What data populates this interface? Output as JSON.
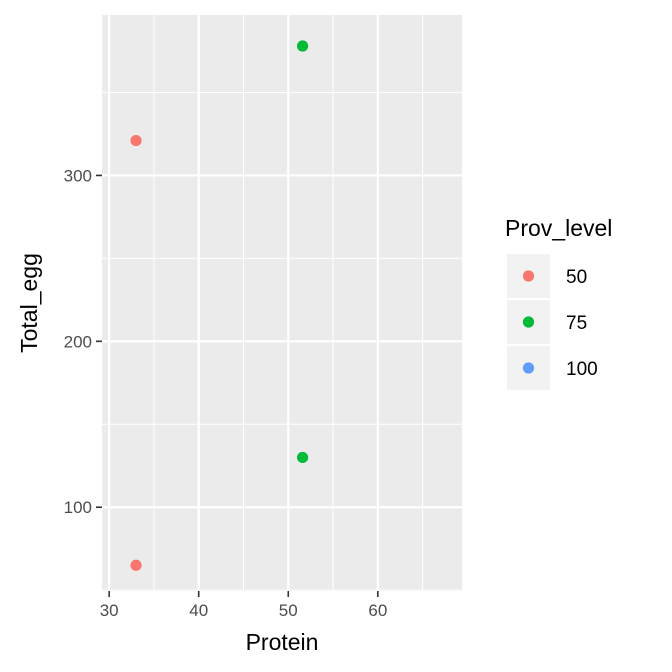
{
  "chart_data": {
    "type": "scatter",
    "xlabel": "Protein",
    "ylabel": "Total_egg",
    "xlim": [
      29.2,
      69.4
    ],
    "ylim": [
      49.5,
      396.7
    ],
    "x_ticks": [
      30,
      40,
      50,
      60
    ],
    "y_ticks": [
      100,
      200,
      300
    ],
    "x_tick_labels": [
      "30",
      "40",
      "50",
      "60"
    ],
    "y_tick_labels": [
      "100",
      "200",
      "300"
    ],
    "x_minor_ticks": [
      35,
      45,
      55,
      65
    ],
    "y_minor_ticks": [
      50,
      150,
      250,
      350
    ],
    "grid": true,
    "legend": {
      "title": "Prov_level",
      "placement": "right",
      "entries": [
        {
          "label": "50",
          "color": "#F8766D"
        },
        {
          "label": "75",
          "color": "#00BA38"
        },
        {
          "label": "100",
          "color": "#619CFF"
        }
      ]
    },
    "series": [
      {
        "level": "50",
        "color": "#F8766D",
        "points": [
          {
            "x": 33,
            "y": 65
          },
          {
            "x": 33,
            "y": 321
          }
        ]
      },
      {
        "level": "75",
        "color": "#00BA38",
        "points": [
          {
            "x": 51.6,
            "y": 130
          },
          {
            "x": 51.6,
            "y": 378
          }
        ]
      },
      {
        "level": "100",
        "color": "#619CFF",
        "points": []
      }
    ]
  },
  "colors": {
    "panel_background": "#EBEBEB",
    "grid": "#FFFFFF",
    "legend_key_background": "#F2F2F2"
  }
}
